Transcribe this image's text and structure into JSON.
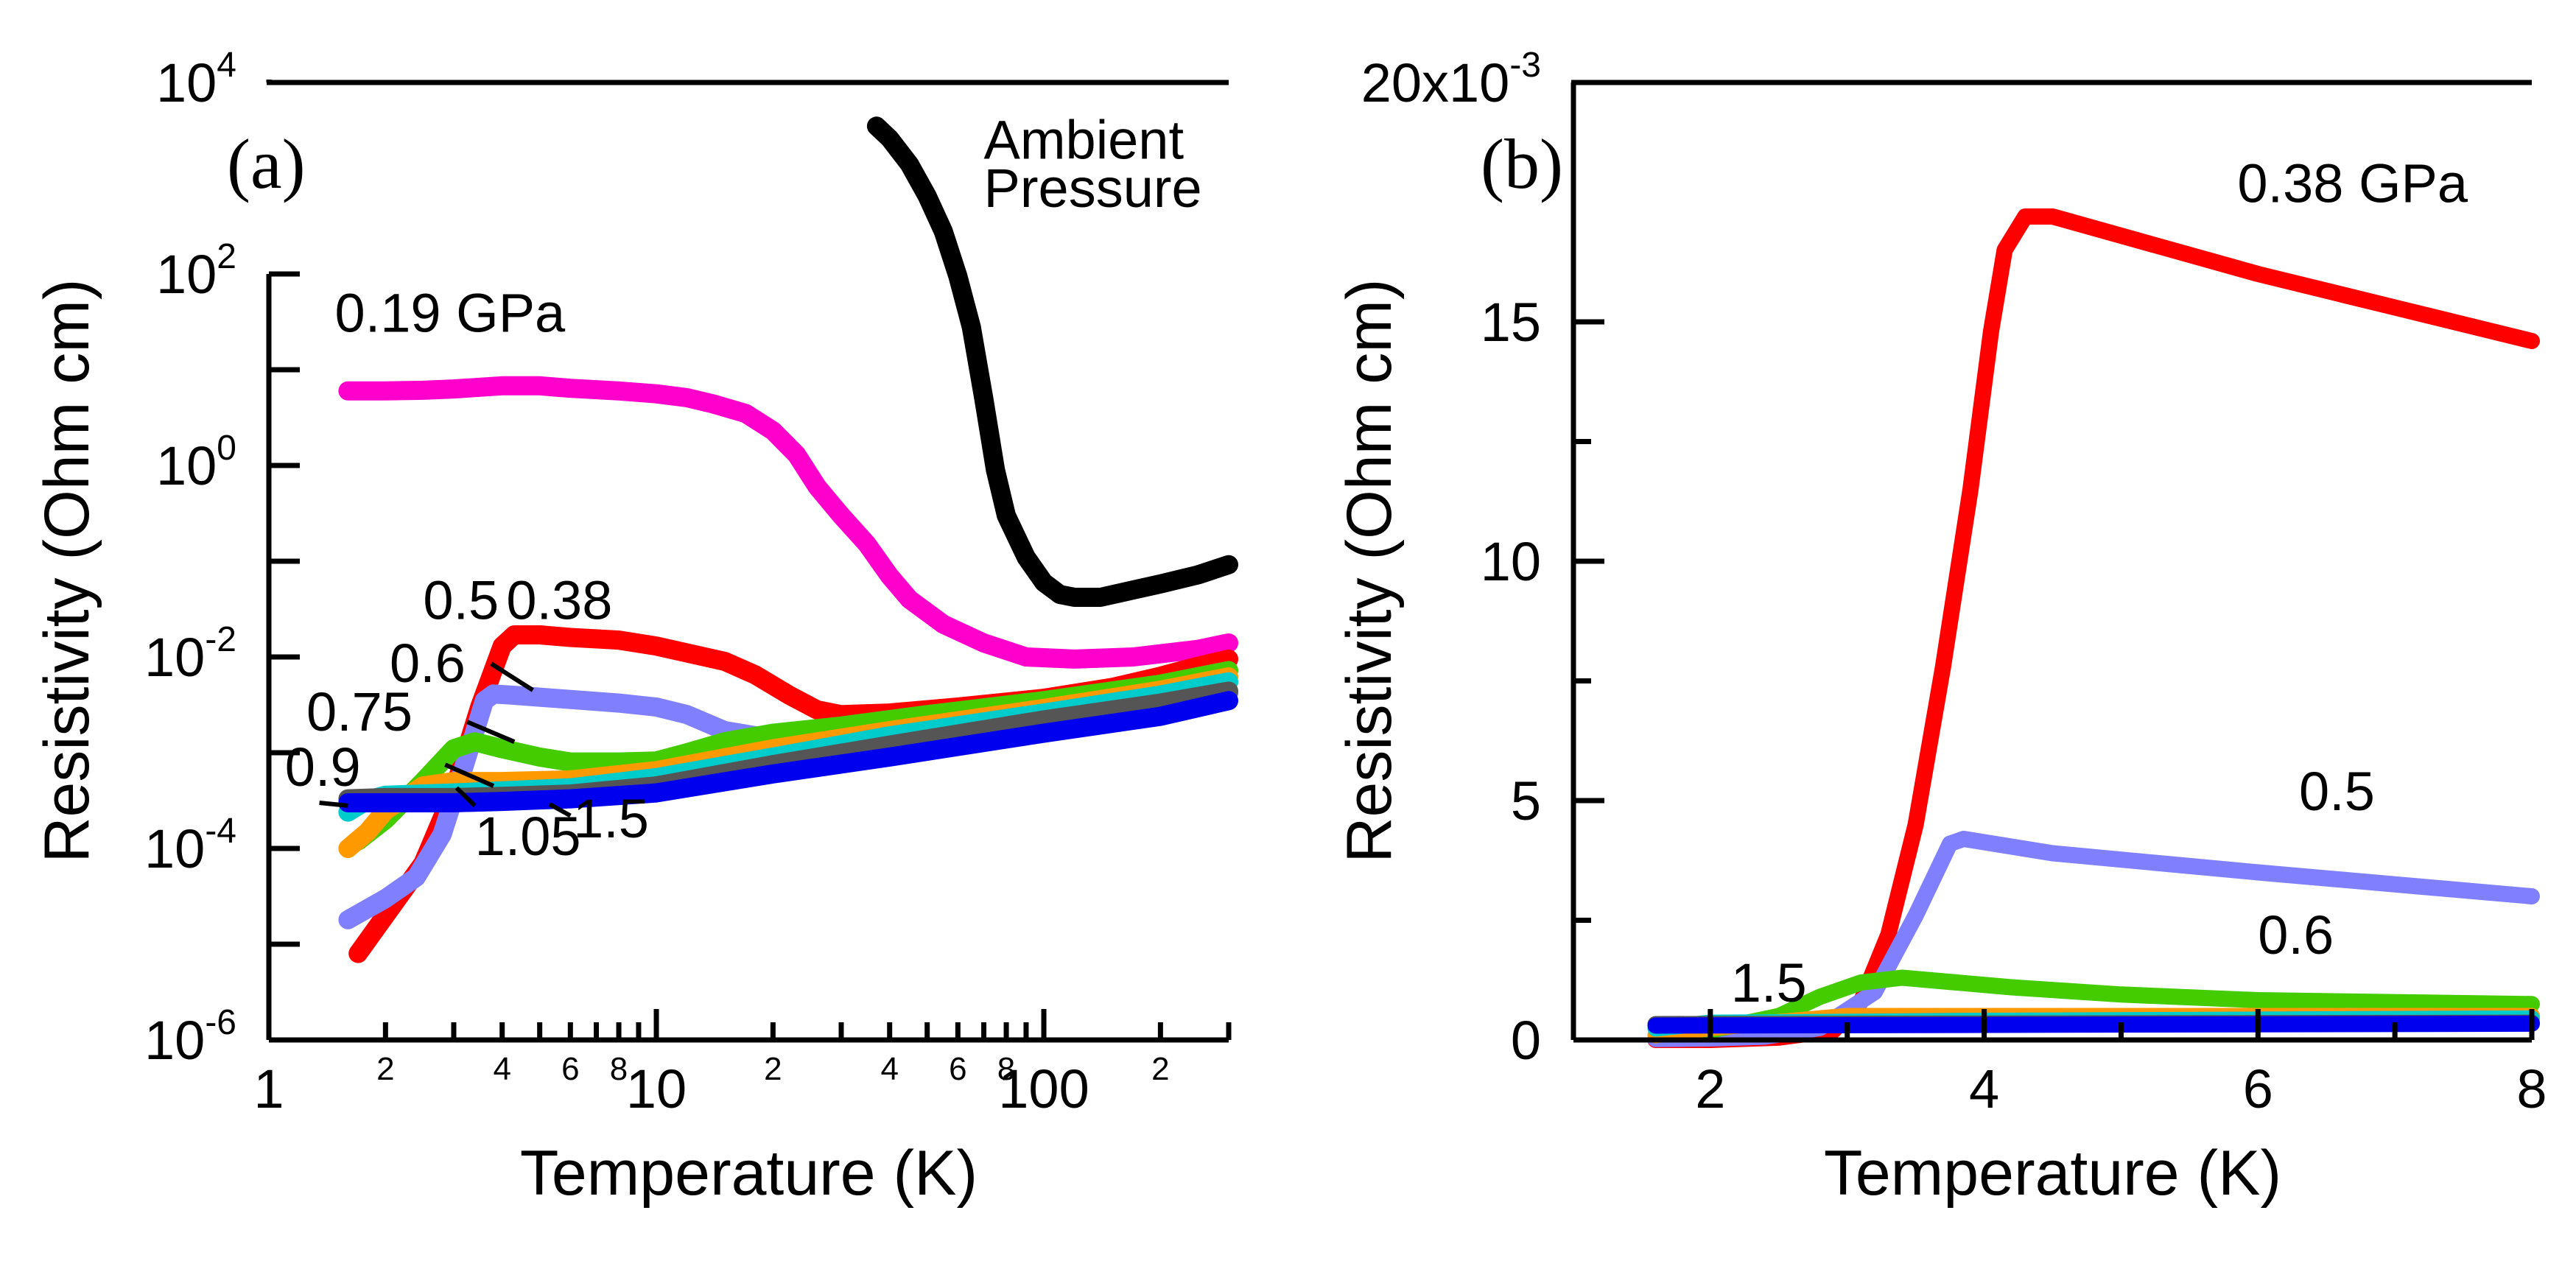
{
  "chart_data": [
    {
      "panel_label": "(a)",
      "type": "line",
      "xscale": "log",
      "yscale": "log",
      "xlabel": "Temperature (K)",
      "ylabel": "Resistivity (Ohm cm)",
      "xlim": [
        1,
        300
      ],
      "ylim": [
        1e-06,
        10000
      ],
      "x_major_ticks": [
        {
          "v": 1,
          "label": "1"
        },
        {
          "v": 10,
          "label": "10"
        },
        {
          "v": 100,
          "label": "100"
        }
      ],
      "x_minor_ticks": [
        2,
        3,
        4,
        5,
        6,
        7,
        8,
        9,
        20,
        30,
        40,
        50,
        60,
        70,
        80,
        90,
        200,
        300
      ],
      "x_minor_labels": [
        {
          "v": 2,
          "label": "2"
        },
        {
          "v": 4,
          "label": "4"
        },
        {
          "v": 6,
          "label": "6"
        },
        {
          "v": 8,
          "label": "8"
        },
        {
          "v": 20,
          "label": "2"
        },
        {
          "v": 40,
          "label": "4"
        },
        {
          "v": 60,
          "label": "6"
        },
        {
          "v": 80,
          "label": "8"
        },
        {
          "v": 200,
          "label": "2"
        }
      ],
      "y_major_ticks": [
        {
          "exp": -6,
          "base": "10",
          "sup": "-6"
        },
        {
          "exp": -4,
          "base": "10",
          "sup": "-4"
        },
        {
          "exp": -2,
          "base": "10",
          "sup": "-2"
        },
        {
          "exp": 0,
          "base": "10",
          "sup": "0"
        },
        {
          "exp": 2,
          "base": "10",
          "sup": "2"
        },
        {
          "exp": 4,
          "base": "10",
          "sup": "4"
        }
      ],
      "y_minor_ticks": [
        -5,
        -3,
        -1,
        1
      ],
      "y_axis_break": [
        2,
        4
      ],
      "series": [
        {
          "name": "Ambient Pressure",
          "color": "#000000",
          "x": [
            37,
            40,
            45,
            50,
            55,
            60,
            65,
            70,
            75,
            80,
            90,
            100,
            110,
            120,
            140,
            170,
            200,
            250,
            300
          ],
          "y": [
            3500,
            2600,
            1400,
            650,
            280,
            95,
            28,
            5,
            0.9,
            0.3,
            0.11,
            0.06,
            0.045,
            0.042,
            0.042,
            0.05,
            0.058,
            0.072,
            0.092
          ]
        },
        {
          "name": "0.19 GPa",
          "color": "#ff00cc",
          "x": [
            1.6,
            2,
            2.5,
            3,
            4,
            5,
            6,
            8,
            10,
            12,
            14,
            17,
            20,
            23,
            26,
            30,
            35,
            40,
            45,
            55,
            70,
            90,
            120,
            170,
            250,
            300
          ],
          "y": [
            6,
            6,
            6.1,
            6.3,
            6.8,
            6.8,
            6.4,
            6,
            5.6,
            5.1,
            4.4,
            3.5,
            2.3,
            1.3,
            0.6,
            0.3,
            0.15,
            0.07,
            0.04,
            0.022,
            0.014,
            0.01,
            0.0095,
            0.01,
            0.012,
            0.014
          ]
        },
        {
          "name": "0.38 GPa",
          "color": "#ff0000",
          "x": [
            1.7,
            2,
            2.5,
            3,
            3.5,
            4,
            4.3,
            5,
            6,
            8,
            10,
            12,
            15,
            18,
            22,
            26,
            30,
            40,
            60,
            100,
            150,
            200,
            250,
            300
          ],
          "y": [
            8e-06,
            2e-05,
            7e-05,
            0.0004,
            0.003,
            0.013,
            0.017,
            0.017,
            0.016,
            0.015,
            0.013,
            0.011,
            0.009,
            0.0065,
            0.004,
            0.0028,
            0.0025,
            0.0026,
            0.003,
            0.0037,
            0.0048,
            0.0063,
            0.008,
            0.0095
          ]
        },
        {
          "name": "0.5",
          "color": "#8080ff",
          "x": [
            1.6,
            2,
            2.4,
            2.8,
            3.2,
            3.6,
            3.8,
            4.2,
            5,
            6,
            8,
            10,
            12,
            15,
            20,
            30,
            50,
            100,
            200,
            300
          ],
          "y": [
            1.8e-05,
            3e-05,
            5e-05,
            0.00014,
            0.00075,
            0.0035,
            0.0041,
            0.004,
            0.0038,
            0.0036,
            0.0033,
            0.003,
            0.0025,
            0.0017,
            0.0014,
            0.0015,
            0.0017,
            0.0021,
            0.003,
            0.0042
          ]
        },
        {
          "name": "0.6",
          "color": "#44cc00",
          "x": [
            1.7,
            2,
            2.5,
            3,
            3.4,
            4,
            5,
            6,
            8,
            10,
            12,
            15,
            20,
            30,
            50,
            100,
            200,
            300
          ],
          "y": [
            0.00012,
            0.0002,
            0.0005,
            0.0011,
            0.0013,
            0.0011,
            0.0009,
            0.0008,
            0.0008,
            0.00082,
            0.001,
            0.0013,
            0.0016,
            0.0019,
            0.0025,
            0.0035,
            0.0052,
            0.0072
          ]
        },
        {
          "name": "0.75",
          "color": "#ff9900",
          "x": [
            1.6,
            1.8,
            2,
            2.5,
            3,
            4,
            6,
            10,
            20,
            40,
            100,
            200,
            300
          ],
          "y": [
            0.0001,
            0.00015,
            0.00025,
            0.00045,
            0.0005,
            0.0005,
            0.00052,
            0.00065,
            0.0011,
            0.0017,
            0.0029,
            0.0045,
            0.0062
          ]
        },
        {
          "name": "0.9",
          "color": "#00cccc",
          "x": [
            1.6,
            1.8,
            2,
            3,
            4,
            6,
            10,
            20,
            40,
            100,
            200,
            300
          ],
          "y": [
            0.00024,
            0.00032,
            0.00036,
            0.00038,
            0.0004,
            0.00043,
            0.00055,
            0.0009,
            0.0015,
            0.0026,
            0.004,
            0.0055
          ]
        },
        {
          "name": "1.05",
          "color": "#555555",
          "x": [
            1.6,
            2,
            3,
            4,
            6,
            10,
            20,
            40,
            100,
            200,
            300
          ],
          "y": [
            0.00033,
            0.00034,
            0.00034,
            0.00035,
            0.00037,
            0.00045,
            0.00075,
            0.0012,
            0.0022,
            0.0033,
            0.0044
          ]
        },
        {
          "name": "1.5",
          "color": "#0000ee",
          "x": [
            1.6,
            2,
            3,
            4,
            6,
            10,
            20,
            40,
            100,
            200,
            300
          ],
          "y": [
            0.0003,
            0.0003,
            0.0003,
            0.00031,
            0.00033,
            0.00038,
            0.0006,
            0.0009,
            0.0016,
            0.0024,
            0.0035
          ]
        }
      ],
      "annotations": [
        {
          "text": "Ambient",
          "x": 70,
          "y": 1600
        },
        {
          "text": "Pressure",
          "x": 70,
          "y": 500
        },
        {
          "text": "0.19 GPa",
          "x": 1.48,
          "y": 25
        },
        {
          "text": "0.5",
          "x": 2.5,
          "y": 0.025
        },
        {
          "text": "0.38",
          "x": 4.1,
          "y": 0.025
        },
        {
          "text": "0.6",
          "x": 2.05,
          "y": 0.0055
        },
        {
          "text": "0.75",
          "x": 1.25,
          "y": 0.0017
        },
        {
          "text": "0.9",
          "x": 1.1,
          "y": 0.00045
        },
        {
          "text": "1.05",
          "x": 3.4,
          "y": 8.5e-05
        },
        {
          "text": "1.5",
          "x": 6.1,
          "y": 0.00013
        }
      ],
      "leaders": [
        {
          "from": [
            3.75,
            0.0085
          ],
          "to": [
            4.8,
            0.0045
          ]
        },
        {
          "from": [
            3.25,
            0.0021
          ],
          "to": [
            4.3,
            0.0013
          ]
        },
        {
          "from": [
            2.85,
            0.00075
          ],
          "to": [
            3.8,
            0.00045
          ]
        },
        {
          "from": [
            1.35,
            0.0003
          ],
          "to": [
            1.6,
            0.00028
          ]
        },
        {
          "from": [
            3.05,
            0.00043
          ],
          "to": [
            3.4,
            0.00028
          ]
        },
        {
          "from": [
            5.3,
            0.00029
          ],
          "to": [
            6,
            0.00022
          ]
        }
      ]
    },
    {
      "panel_label": "(b)",
      "type": "line",
      "xlabel": "Temperature (K)",
      "ylabel": "Resistivity (Ohm cm)",
      "xlim": [
        1,
        8
      ],
      "ylim": [
        0,
        0.02
      ],
      "x_major_ticks": [
        {
          "v": 2,
          "label": "2"
        },
        {
          "v": 4,
          "label": "4"
        },
        {
          "v": 6,
          "label": "6"
        },
        {
          "v": 8,
          "label": "8"
        }
      ],
      "x_minor_ticks": [
        3,
        5,
        7
      ],
      "y_major_ticks": [
        {
          "v": 0,
          "label": "0"
        },
        {
          "v": 0.005,
          "label": "5"
        },
        {
          "v": 0.01,
          "label": "10"
        },
        {
          "v": 0.015,
          "label": "15"
        },
        {
          "v": 0.02,
          "label": "20x10"
        }
      ],
      "y_multiplier_sup": "-3",
      "y_minor_ticks": [
        0.0025,
        0.0075,
        0.0125
      ],
      "series": [
        {
          "name": "0.38 GPa",
          "color": "#ff0000",
          "x": [
            1.6,
            2,
            2.5,
            2.9,
            3.1,
            3.3,
            3.5,
            3.7,
            3.9,
            4.05,
            4.15,
            4.3,
            4.5,
            5,
            6,
            7,
            8
          ],
          "y": [
            0,
            0,
            5e-05,
            0.0002,
            0.0008,
            0.0022,
            0.0045,
            0.0078,
            0.0115,
            0.0148,
            0.0165,
            0.0172,
            0.0172,
            0.0168,
            0.016,
            0.0153,
            0.0146
          ]
        },
        {
          "name": "0.5",
          "color": "#8080ff",
          "x": [
            1.6,
            2,
            2.4,
            2.8,
            3.2,
            3.5,
            3.75,
            3.85,
            4.5,
            6,
            8
          ],
          "y": [
            2e-05,
            3e-05,
            7e-05,
            0.00025,
            0.001,
            0.0026,
            0.0041,
            0.0042,
            0.0039,
            0.0035,
            0.003
          ]
        },
        {
          "name": "0.6",
          "color": "#44cc00",
          "x": [
            1.7,
            2,
            2.5,
            2.8,
            3.1,
            3.4,
            3.8,
            4.2,
            5,
            6,
            8
          ],
          "y": [
            0.00012,
            0.0002,
            0.0005,
            0.0009,
            0.0012,
            0.0013,
            0.0012,
            0.0011,
            0.00095,
            0.00083,
            0.00075
          ]
        },
        {
          "name": "0.75",
          "color": "#ff9900",
          "x": [
            1.6,
            2,
            3,
            4,
            8
          ],
          "y": [
            0.0001,
            0.00025,
            0.0005,
            0.0005,
            0.0005
          ]
        },
        {
          "name": "0.9",
          "color": "#00cccc",
          "x": [
            1.6,
            2,
            4,
            8
          ],
          "y": [
            0.00024,
            0.00036,
            0.0004,
            0.00045
          ]
        },
        {
          "name": "1.05",
          "color": "#555555",
          "x": [
            1.6,
            8
          ],
          "y": [
            0.00033,
            0.00036
          ]
        },
        {
          "name": "1.5",
          "color": "#0000ee",
          "x": [
            1.6,
            8
          ],
          "y": [
            0.0003,
            0.00034
          ]
        }
      ],
      "annotations": [
        {
          "text": "0.38 GPa",
          "x": 5.85,
          "y": 0.0175
        },
        {
          "text": "0.5",
          "x": 6.3,
          "y": 0.0048
        },
        {
          "text": "0.6",
          "x": 6.0,
          "y": 0.0018
        },
        {
          "text": "1.5",
          "x": 2.15,
          "y": 0.0008
        }
      ]
    }
  ]
}
